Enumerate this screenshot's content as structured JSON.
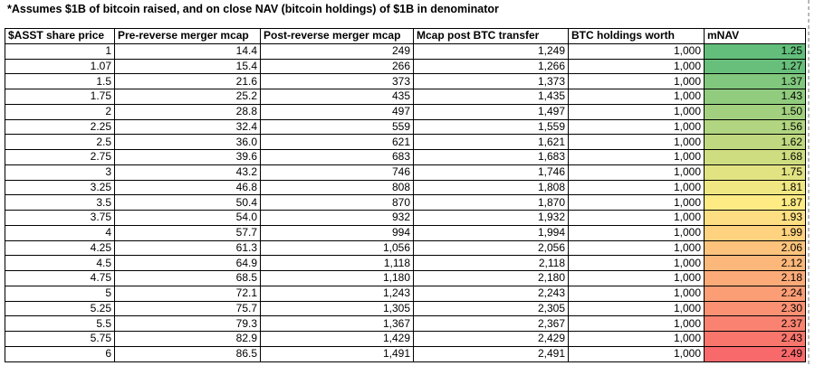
{
  "title": "*Assumes $1B of bitcoin raised, and on close NAV (bitcoin holdings) of $1B in denominator",
  "table": {
    "columns": [
      "$ASST share price",
      "Pre-reverse merger mcap",
      "Post-reverse merger mcap",
      "Mcap post BTC transfer",
      "BTC holdings worth",
      "mNAV"
    ],
    "rows": [
      [
        "1",
        "14.4",
        "249",
        "1,249",
        "1,000",
        "1.25"
      ],
      [
        "1.07",
        "15.4",
        "266",
        "1,266",
        "1,000",
        "1.27"
      ],
      [
        "1.5",
        "21.6",
        "373",
        "1,373",
        "1,000",
        "1.37"
      ],
      [
        "1.75",
        "25.2",
        "435",
        "1,435",
        "1,000",
        "1.43"
      ],
      [
        "2",
        "28.8",
        "497",
        "1,497",
        "1,000",
        "1.50"
      ],
      [
        "2.25",
        "32.4",
        "559",
        "1,559",
        "1,000",
        "1.56"
      ],
      [
        "2.5",
        "36.0",
        "621",
        "1,621",
        "1,000",
        "1.62"
      ],
      [
        "2.75",
        "39.6",
        "683",
        "1,683",
        "1,000",
        "1.68"
      ],
      [
        "3",
        "43.2",
        "746",
        "1,746",
        "1,000",
        "1.75"
      ],
      [
        "3.25",
        "46.8",
        "808",
        "1,808",
        "1,000",
        "1.81"
      ],
      [
        "3.5",
        "50.4",
        "870",
        "1,870",
        "1,000",
        "1.87"
      ],
      [
        "3.75",
        "54.0",
        "932",
        "1,932",
        "1,000",
        "1.93"
      ],
      [
        "4",
        "57.7",
        "994",
        "1,994",
        "1,000",
        "1.99"
      ],
      [
        "4.25",
        "61.3",
        "1,056",
        "2,056",
        "1,000",
        "2.06"
      ],
      [
        "4.5",
        "64.9",
        "1,118",
        "2,118",
        "1,000",
        "2.12"
      ],
      [
        "4.75",
        "68.5",
        "1,180",
        "2,180",
        "1,000",
        "2.18"
      ],
      [
        "5",
        "72.1",
        "1,243",
        "2,243",
        "1,000",
        "2.24"
      ],
      [
        "5.25",
        "75.7",
        "1,305",
        "2,305",
        "1,000",
        "2.30"
      ],
      [
        "5.5",
        "79.3",
        "1,367",
        "2,367",
        "1,000",
        "2.37"
      ],
      [
        "5.75",
        "82.9",
        "1,429",
        "2,429",
        "1,000",
        "2.43"
      ],
      [
        "6",
        "86.5",
        "1,491",
        "2,491",
        "1,000",
        "2.49"
      ]
    ]
  },
  "mnav_scale": {
    "min_value": 1.25,
    "mid_value": 1.87,
    "max_value": 2.49,
    "min_color": "#63BE7B",
    "mid_color": "#FFEB84",
    "max_color": "#F8696B"
  },
  "page_break_color": "#b9b9b9"
}
